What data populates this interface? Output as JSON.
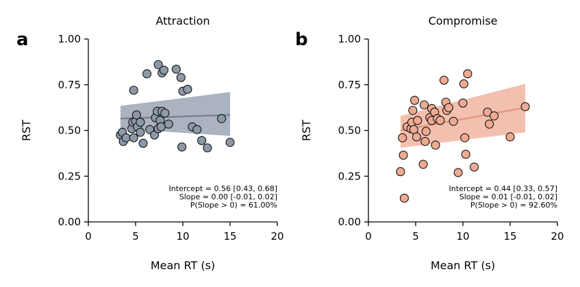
{
  "chart_data": [
    {
      "type": "scatter",
      "panel_label": "a",
      "title": "Attraction",
      "xlabel": "Mean RT (s)",
      "ylabel": "RST",
      "xlim": [
        0,
        20
      ],
      "ylim": [
        0,
        1
      ],
      "xticks": [
        "0",
        "5",
        "10",
        "15",
        "20"
      ],
      "yticks": [
        "0.00",
        "0.25",
        "0.50",
        "0.75",
        "1.00"
      ],
      "grid": false,
      "color_point": "#8c99a8",
      "color_line": "#77838f",
      "color_band": "#8a96a8",
      "points": [
        {
          "x": 3.4,
          "y": 0.475
        },
        {
          "x": 3.6,
          "y": 0.49
        },
        {
          "x": 3.7,
          "y": 0.44
        },
        {
          "x": 4.0,
          "y": 0.46
        },
        {
          "x": 4.6,
          "y": 0.51
        },
        {
          "x": 4.7,
          "y": 0.545
        },
        {
          "x": 4.8,
          "y": 0.46
        },
        {
          "x": 4.8,
          "y": 0.72
        },
        {
          "x": 5.0,
          "y": 0.55
        },
        {
          "x": 5.1,
          "y": 0.585
        },
        {
          "x": 5.2,
          "y": 0.52
        },
        {
          "x": 5.5,
          "y": 0.545
        },
        {
          "x": 5.5,
          "y": 0.49
        },
        {
          "x": 5.8,
          "y": 0.43
        },
        {
          "x": 6.2,
          "y": 0.81
        },
        {
          "x": 6.5,
          "y": 0.505
        },
        {
          "x": 7.0,
          "y": 0.475
        },
        {
          "x": 7.1,
          "y": 0.57
        },
        {
          "x": 7.3,
          "y": 0.605
        },
        {
          "x": 7.4,
          "y": 0.86
        },
        {
          "x": 7.4,
          "y": 0.51
        },
        {
          "x": 7.6,
          "y": 0.555
        },
        {
          "x": 7.7,
          "y": 0.52
        },
        {
          "x": 7.8,
          "y": 0.605
        },
        {
          "x": 7.8,
          "y": 0.815
        },
        {
          "x": 8.0,
          "y": 0.83
        },
        {
          "x": 8.1,
          "y": 0.595
        },
        {
          "x": 8.5,
          "y": 0.535
        },
        {
          "x": 9.3,
          "y": 0.835
        },
        {
          "x": 9.8,
          "y": 0.79
        },
        {
          "x": 9.9,
          "y": 0.41
        },
        {
          "x": 10.0,
          "y": 0.715
        },
        {
          "x": 10.5,
          "y": 0.725
        },
        {
          "x": 11.0,
          "y": 0.52
        },
        {
          "x": 11.5,
          "y": 0.505
        },
        {
          "x": 12.0,
          "y": 0.445
        },
        {
          "x": 12.6,
          "y": 0.405
        },
        {
          "x": 14.1,
          "y": 0.565
        },
        {
          "x": 15.0,
          "y": 0.435
        }
      ],
      "fit": {
        "x": [
          3.4,
          15.0
        ],
        "y": [
          0.565,
          0.585
        ]
      },
      "band": {
        "x": [
          3.4,
          15.0
        ],
        "upper": [
          0.635,
          0.71
        ],
        "lower": [
          0.51,
          0.47
        ]
      },
      "annotation": [
        "Intercept = 0.56 [0.43, 0.68]",
        "Slope = 0.00 [-0.01, 0.02]",
        "P(Slope > 0) = 61.00%"
      ]
    },
    {
      "type": "scatter",
      "panel_label": "b",
      "title": "Compromise",
      "xlabel": "Mean RT (s)",
      "ylabel": "RST",
      "xlim": [
        0,
        20
      ],
      "ylim": [
        0,
        1
      ],
      "xticks": [
        "0",
        "5",
        "10",
        "15",
        "20"
      ],
      "yticks": [
        "0.00",
        "0.25",
        "0.50",
        "0.75",
        "1.00"
      ],
      "grid": false,
      "color_point": "#eeaa92",
      "color_line": "#e59680",
      "color_band": "#eea890",
      "points": [
        {
          "x": 3.4,
          "y": 0.275
        },
        {
          "x": 3.6,
          "y": 0.46
        },
        {
          "x": 3.7,
          "y": 0.365
        },
        {
          "x": 3.8,
          "y": 0.13
        },
        {
          "x": 4.1,
          "y": 0.52
        },
        {
          "x": 4.5,
          "y": 0.51
        },
        {
          "x": 4.6,
          "y": 0.545
        },
        {
          "x": 4.7,
          "y": 0.61
        },
        {
          "x": 4.8,
          "y": 0.505
        },
        {
          "x": 4.9,
          "y": 0.665
        },
        {
          "x": 5.1,
          "y": 0.465
        },
        {
          "x": 5.2,
          "y": 0.555
        },
        {
          "x": 5.8,
          "y": 0.315
        },
        {
          "x": 5.9,
          "y": 0.64
        },
        {
          "x": 6.0,
          "y": 0.44
        },
        {
          "x": 6.1,
          "y": 0.495
        },
        {
          "x": 6.5,
          "y": 0.57
        },
        {
          "x": 6.7,
          "y": 0.62
        },
        {
          "x": 6.7,
          "y": 0.555
        },
        {
          "x": 7.0,
          "y": 0.6
        },
        {
          "x": 7.1,
          "y": 0.42
        },
        {
          "x": 7.3,
          "y": 0.565
        },
        {
          "x": 7.6,
          "y": 0.555
        },
        {
          "x": 8.0,
          "y": 0.775
        },
        {
          "x": 8.2,
          "y": 0.655
        },
        {
          "x": 8.3,
          "y": 0.61
        },
        {
          "x": 8.5,
          "y": 0.625
        },
        {
          "x": 9.0,
          "y": 0.55
        },
        {
          "x": 9.5,
          "y": 0.27
        },
        {
          "x": 10.0,
          "y": 0.65
        },
        {
          "x": 10.1,
          "y": 0.755
        },
        {
          "x": 10.2,
          "y": 0.46
        },
        {
          "x": 10.3,
          "y": 0.37
        },
        {
          "x": 10.5,
          "y": 0.81
        },
        {
          "x": 11.2,
          "y": 0.3
        },
        {
          "x": 12.6,
          "y": 0.6
        },
        {
          "x": 12.8,
          "y": 0.535
        },
        {
          "x": 13.3,
          "y": 0.58
        },
        {
          "x": 15.0,
          "y": 0.465
        },
        {
          "x": 16.6,
          "y": 0.63
        }
      ],
      "fit": {
        "x": [
          3.4,
          16.6
        ],
        "y": [
          0.5,
          0.625
        ]
      },
      "band": {
        "x": [
          3.4,
          16.6
        ],
        "upper": [
          0.58,
          0.755
        ],
        "lower": [
          0.405,
          0.49
        ]
      },
      "annotation": [
        "Intercept = 0.44 [0.33, 0.57]",
        "Slope = 0.01 [-0.01, 0.02]",
        "P(Slope > 0) = 92.60%"
      ]
    }
  ]
}
